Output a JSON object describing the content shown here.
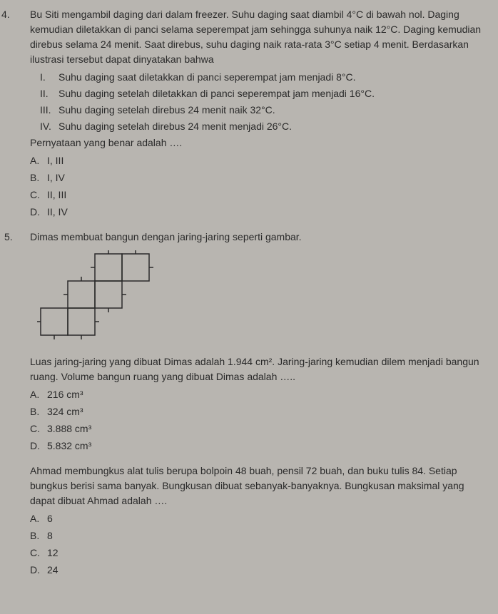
{
  "q4": {
    "number": "4.",
    "text": "Bu Siti mengambil daging dari dalam freezer. Suhu daging saat diambil 4°C di bawah nol. Daging kemudian diletakkan di panci selama seperempat jam sehingga suhunya naik 12°C. Daging kemudian direbus selama 24 menit. Saat direbus, suhu daging naik rata-rata 3°C setiap 4 menit. Berdasarkan ilustrasi tersebut dapat dinyatakan bahwa",
    "statements": [
      {
        "label": "I.",
        "text": "Suhu daging saat diletakkan di panci seperempat jam menjadi 8°C."
      },
      {
        "label": "II.",
        "text": "Suhu daging setelah diletakkan di panci seperempat jam menjadi 16°C."
      },
      {
        "label": "III.",
        "text": "Suhu daging setelah direbus 24 menit naik 32°C."
      },
      {
        "label": "IV.",
        "text": "Suhu daging setelah direbus 24 menit menjadi 26°C."
      }
    ],
    "prompt": "Pernyataan yang benar adalah ….",
    "options": [
      {
        "label": "A.",
        "text": "I, III"
      },
      {
        "label": "B.",
        "text": "I, IV"
      },
      {
        "label": "C.",
        "text": "II, III"
      },
      {
        "label": "D.",
        "text": "II, IV"
      }
    ]
  },
  "q5": {
    "number": "5.",
    "text": "Dimas membuat bangun dengan jaring-jaring seperti gambar.",
    "diagram": {
      "cell_size": 38,
      "stroke_color": "#2a2a2a",
      "stroke_width": 1.5,
      "tick_len": 6,
      "cells": [
        {
          "row": 0,
          "col": 2
        },
        {
          "row": 0,
          "col": 3
        },
        {
          "row": 1,
          "col": 1
        },
        {
          "row": 1,
          "col": 2
        },
        {
          "row": 2,
          "col": 0
        },
        {
          "row": 2,
          "col": 1
        }
      ]
    },
    "text2": "Luas jaring-jaring yang dibuat Dimas adalah 1.944 cm². Jaring-jaring kemudian dilem menjadi bangun ruang. Volume bangun ruang yang dibuat Dimas adalah …..",
    "options": [
      {
        "label": "A.",
        "text": "216 cm³"
      },
      {
        "label": "B.",
        "text": "324 cm³"
      },
      {
        "label": "C.",
        "text": "3.888 cm³"
      },
      {
        "label": "D.",
        "text": "5.832 cm³"
      }
    ]
  },
  "q6": {
    "number": "",
    "text": "Ahmad membungkus alat tulis berupa bolpoin 48 buah, pensil 72 buah, dan buku tulis 84. Setiap bungkus berisi sama banyak. Bungkusan dibuat sebanyak-banyaknya. Bungkusan maksimal yang dapat dibuat Ahmad adalah ….",
    "options": [
      {
        "label": "A.",
        "text": "6"
      },
      {
        "label": "B.",
        "text": "8"
      },
      {
        "label": "C.",
        "text": "12"
      },
      {
        "label": "D.",
        "text": "24"
      }
    ]
  }
}
